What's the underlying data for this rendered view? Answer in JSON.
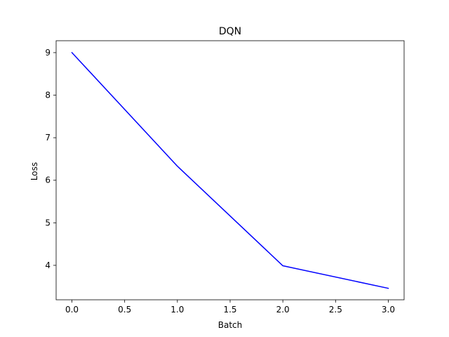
{
  "chart_data": {
    "type": "line",
    "title": "DQN",
    "xlabel": "Batch",
    "ylabel": "Loss",
    "xlim": [
      -0.15,
      3.15
    ],
    "ylim": [
      3.19,
      9.28
    ],
    "x_ticks": [
      0.0,
      0.5,
      1.0,
      1.5,
      2.0,
      2.5,
      3.0
    ],
    "x_tick_labels": [
      "0.0",
      "0.5",
      "1.0",
      "1.5",
      "2.0",
      "2.5",
      "3.0"
    ],
    "y_ticks": [
      4,
      5,
      6,
      7,
      8,
      9
    ],
    "y_tick_labels": [
      "4",
      "5",
      "6",
      "7",
      "8",
      "9"
    ],
    "grid": false,
    "series": [
      {
        "color": "#0000ff",
        "x": [
          0,
          1,
          2,
          3
        ],
        "values": [
          9.0,
          6.33,
          3.99,
          3.46
        ]
      }
    ]
  }
}
